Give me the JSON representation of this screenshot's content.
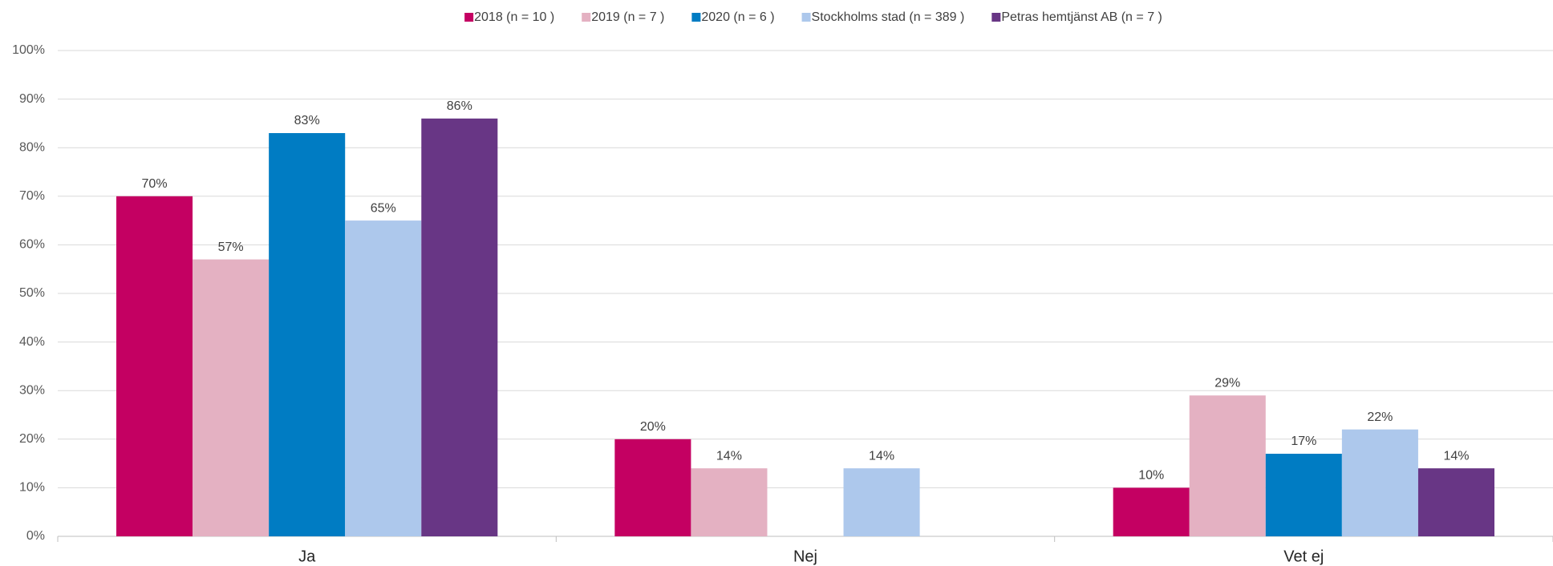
{
  "chart_data": {
    "type": "bar",
    "categories": [
      "Ja",
      "Nej",
      "Vet ej"
    ],
    "series": [
      {
        "name": "2018 (n = 10 )",
        "color": "#c40062",
        "values": [
          70,
          20,
          10
        ],
        "value_labels": [
          "70%",
          "20%",
          "10%"
        ]
      },
      {
        "name": "2019 (n = 7 )",
        "color": "#e4b1c2",
        "values": [
          57,
          14,
          29
        ],
        "value_labels": [
          "57%",
          "14%",
          "29%"
        ]
      },
      {
        "name": "2020 (n = 6 )",
        "color": "#007cc3",
        "values": [
          83,
          null,
          17
        ],
        "value_labels": [
          "83%",
          null,
          "17%"
        ]
      },
      {
        "name": "Stockholms stad (n = 389 )",
        "color": "#adc8ec",
        "values": [
          65,
          14,
          22
        ],
        "value_labels": [
          "65%",
          "14%",
          "22%"
        ]
      },
      {
        "name": "Petras hemtjänst AB (n = 7 )",
        "color": "#683685",
        "values": [
          86,
          null,
          14
        ],
        "value_labels": [
          "86%",
          null,
          "14%"
        ]
      }
    ],
    "ylim": [
      0,
      100
    ],
    "yticks": [
      {
        "value": 0,
        "label": "0%"
      },
      {
        "value": 10,
        "label": "10%"
      },
      {
        "value": 20,
        "label": "20%"
      },
      {
        "value": 30,
        "label": "30%"
      },
      {
        "value": 40,
        "label": "40%"
      },
      {
        "value": 50,
        "label": "50%"
      },
      {
        "value": 60,
        "label": "60%"
      },
      {
        "value": 70,
        "label": "70%"
      },
      {
        "value": 80,
        "label": "80%"
      },
      {
        "value": 90,
        "label": "90%"
      },
      {
        "value": 100,
        "label": "100%"
      }
    ],
    "grid": true,
    "legend": "top"
  }
}
